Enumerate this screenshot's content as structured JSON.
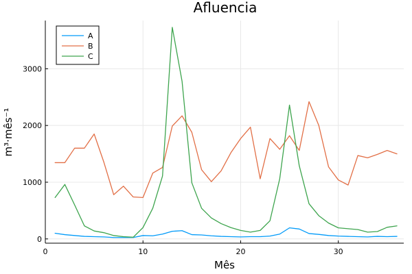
{
  "chart_data": {
    "type": "line",
    "title": "Afluencia",
    "xlabel": "Mês",
    "ylabel": "m³·mês⁻¹",
    "xlim": [
      0,
      36.7
    ],
    "ylim": [
      -75,
      3850
    ],
    "xticks": [
      0,
      10,
      20,
      30
    ],
    "yticks": [
      0,
      1000,
      2000,
      3000
    ],
    "grid": true,
    "legend_position": "top-left",
    "x": [
      1,
      2,
      3,
      4,
      5,
      6,
      7,
      8,
      9,
      10,
      11,
      12,
      13,
      14,
      15,
      16,
      17,
      18,
      19,
      20,
      21,
      22,
      23,
      24,
      25,
      26,
      27,
      28,
      29,
      30,
      31,
      32,
      33,
      34,
      35,
      36
    ],
    "series": [
      {
        "name": "A",
        "color": "#009af9",
        "values": [
          100,
          75,
          60,
          45,
          40,
          35,
          25,
          25,
          25,
          60,
          55,
          85,
          135,
          145,
          75,
          70,
          55,
          45,
          40,
          35,
          40,
          40,
          50,
          85,
          195,
          175,
          95,
          80,
          60,
          50,
          45,
          40,
          35,
          45,
          40,
          45
        ]
      },
      {
        "name": "B",
        "color": "#e26f46",
        "values": [
          1345,
          1345,
          1600,
          1600,
          1850,
          1350,
          780,
          930,
          740,
          730,
          1160,
          1260,
          1990,
          2170,
          1880,
          1220,
          1010,
          1200,
          1520,
          1770,
          1970,
          1060,
          1770,
          1580,
          1820,
          1560,
          2420,
          2000,
          1270,
          1040,
          950,
          1470,
          1430,
          1490,
          1560,
          1500
        ]
      },
      {
        "name": "C",
        "color": "#3da44d",
        "values": [
          730,
          960,
          600,
          230,
          140,
          110,
          60,
          40,
          30,
          200,
          540,
          1110,
          3730,
          2780,
          990,
          540,
          370,
          270,
          200,
          150,
          120,
          150,
          320,
          1060,
          2360,
          1290,
          620,
          410,
          280,
          195,
          180,
          165,
          120,
          130,
          205,
          230
        ]
      }
    ]
  }
}
